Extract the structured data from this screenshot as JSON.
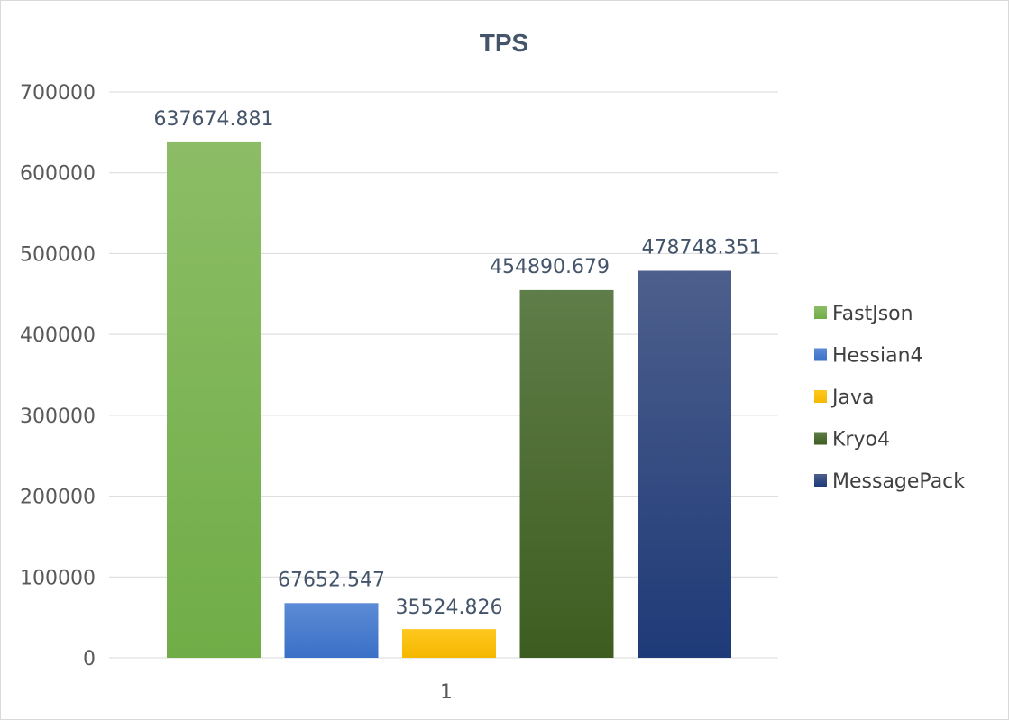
{
  "chart_data": {
    "type": "bar",
    "title": "TPS",
    "categories": [
      "1"
    ],
    "ylim": [
      0,
      700000
    ],
    "y_ticks": [
      0,
      100000,
      200000,
      300000,
      400000,
      500000,
      600000,
      700000
    ],
    "grid": true,
    "legend_position": "right",
    "series": [
      {
        "name": "FastJson",
        "values": [
          637674.881
        ],
        "label": "637674.881",
        "color": "#70ad47",
        "color_light": "#8cbd66"
      },
      {
        "name": "Hessian4",
        "values": [
          67652.547
        ],
        "label": "67652.547",
        "color": "#3a70c6",
        "color_light": "#5c8bd6"
      },
      {
        "name": "Java",
        "values": [
          35524.826
        ],
        "label": "35524.826",
        "color": "#f5b800",
        "color_light": "#ffc81f"
      },
      {
        "name": "Kryo4",
        "values": [
          454890.679
        ],
        "label": "454890.679",
        "color": "#3d5d20",
        "color_light": "#5f7d48"
      },
      {
        "name": "MessagePack",
        "values": [
          478748.351
        ],
        "label": "478748.351",
        "color": "#1e3a78",
        "color_light": "#4d5f8c"
      }
    ]
  }
}
